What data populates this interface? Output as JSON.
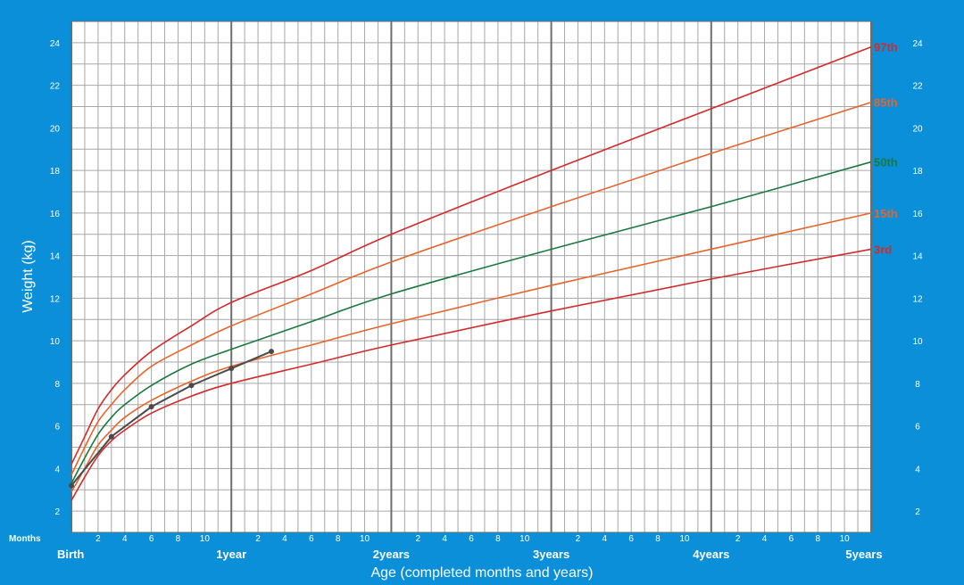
{
  "chart_data": {
    "type": "line",
    "title": "",
    "xlabel": "Age (completed months and years)",
    "ylabel": "Weight (kg)",
    "months_label": "Months",
    "xlim": [
      0,
      60
    ],
    "ylim": [
      1,
      25
    ],
    "y_ticks": [
      2,
      4,
      6,
      8,
      10,
      12,
      14,
      16,
      18,
      20,
      22,
      24
    ],
    "month_tick_labels": [
      "2",
      "4",
      "6",
      "8",
      "10"
    ],
    "year_labels": [
      {
        "x": 0,
        "label": "Birth"
      },
      {
        "x": 12,
        "label": "1year"
      },
      {
        "x": 24,
        "label": "2years"
      },
      {
        "x": 36,
        "label": "3years"
      },
      {
        "x": 48,
        "label": "4years"
      },
      {
        "x": 60,
        "label": "5years"
      }
    ],
    "x": [
      0,
      1,
      2,
      3,
      4,
      6,
      9,
      12,
      18,
      24,
      36,
      48,
      60
    ],
    "series": [
      {
        "name": "97th",
        "color": "#d42a2a",
        "values": [
          4.2,
          5.5,
          6.8,
          7.7,
          8.4,
          9.5,
          10.7,
          11.8,
          13.3,
          15.0,
          18.0,
          20.9,
          23.8
        ]
      },
      {
        "name": "85th",
        "color": "#e8642a",
        "values": [
          3.7,
          5.0,
          6.2,
          7.0,
          7.7,
          8.8,
          9.8,
          10.7,
          12.2,
          13.7,
          16.3,
          18.8,
          21.2
        ]
      },
      {
        "name": "50th",
        "color": "#1a7a3e",
        "values": [
          3.3,
          4.5,
          5.6,
          6.4,
          7.0,
          7.9,
          8.9,
          9.6,
          10.9,
          12.2,
          14.3,
          16.3,
          18.4
        ]
      },
      {
        "name": "15th",
        "color": "#e8642a",
        "values": [
          2.9,
          4.0,
          5.1,
          5.8,
          6.4,
          7.2,
          8.1,
          8.8,
          9.8,
          10.8,
          12.6,
          14.3,
          16.0
        ]
      },
      {
        "name": "3rd",
        "color": "#d42a2a",
        "values": [
          2.5,
          3.6,
          4.6,
          5.3,
          5.8,
          6.6,
          7.4,
          8.0,
          8.9,
          9.8,
          11.4,
          12.9,
          14.3
        ]
      }
    ],
    "measurements": {
      "color": "#4a4a4a",
      "points": [
        {
          "x": 0,
          "y": 3.2
        },
        {
          "x": 3,
          "y": 5.5
        },
        {
          "x": 6,
          "y": 6.9
        },
        {
          "x": 9,
          "y": 7.9
        },
        {
          "x": 12,
          "y": 8.7
        },
        {
          "x": 15,
          "y": 9.5
        }
      ]
    },
    "grid": true
  },
  "colors": {
    "background": "#0a8fd8",
    "plot_area": "#ffffff",
    "minor_grid": "#a7a7a7",
    "major_grid": "#6e6e6e",
    "text_on_blue": "#ffffff"
  }
}
